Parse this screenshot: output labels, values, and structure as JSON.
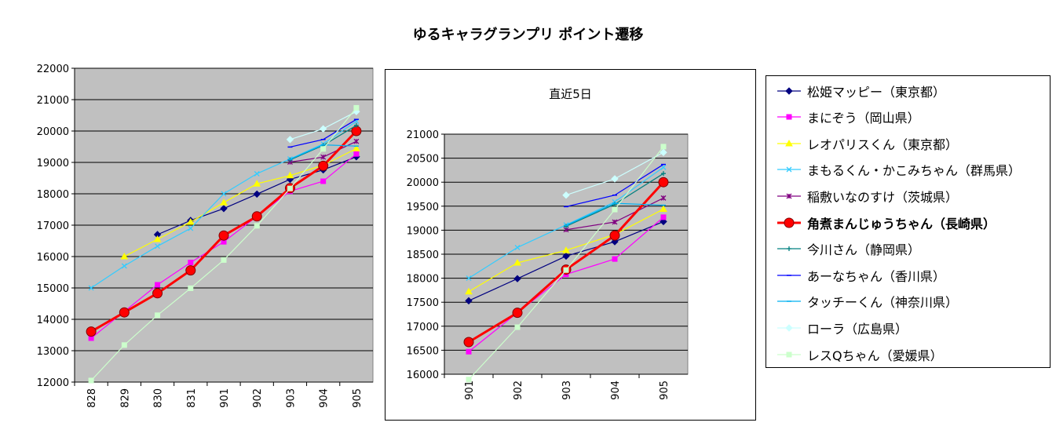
{
  "title": "ゆるキャラグランプリ ポイント遷移",
  "chart_data": [
    {
      "type": "line",
      "categories": [
        "828",
        "829",
        "830",
        "831",
        "901",
        "902",
        "903",
        "904",
        "905"
      ],
      "ylim": [
        12000,
        22000
      ],
      "yticks": [
        12000,
        13000,
        14000,
        15000,
        16000,
        17000,
        18000,
        19000,
        20000,
        21000,
        22000
      ],
      "grid": true,
      "series": [
        {
          "name": "松姫マッピー（東京都）",
          "values": [
            null,
            null,
            16700,
            17150,
            17530,
            17990,
            18460,
            18760,
            19180
          ]
        },
        {
          "name": "まにぞう（岡山県）",
          "values": [
            13400,
            14250,
            15100,
            15810,
            16470,
            17280,
            18080,
            18400,
            19270
          ]
        },
        {
          "name": "レオパリスくん（東京都）",
          "values": [
            null,
            16000,
            16550,
            17100,
            17720,
            18320,
            18580,
            18910,
            19440
          ]
        },
        {
          "name": "まもるくん・かこみちゃん（群馬県）",
          "values": [
            15000,
            15700,
            16330,
            16900,
            18000,
            18640,
            19110,
            19590,
            20310
          ]
        },
        {
          "name": "稲敷いなのすけ（茨城県）",
          "values": [
            null,
            null,
            null,
            null,
            null,
            null,
            19010,
            19170,
            19670
          ]
        },
        {
          "name": "角煮まんじゅうちゃん（長崎県）",
          "values": [
            13610,
            14220,
            14830,
            15560,
            16670,
            17280,
            18180,
            18890,
            20000
          ]
        },
        {
          "name": "今川さん（静岡県）",
          "values": [
            null,
            null,
            null,
            null,
            null,
            null,
            19080,
            19540,
            20180
          ]
        },
        {
          "name": "あーなちゃん（香川県）",
          "values": [
            null,
            null,
            null,
            null,
            null,
            null,
            19490,
            19730,
            20370
          ]
        },
        {
          "name": "タッチーくん（神奈川県）",
          "values": [
            null,
            null,
            null,
            null,
            null,
            null,
            19100,
            19560,
            19520
          ]
        },
        {
          "name": "ローラ（広島県）",
          "values": [
            null,
            null,
            null,
            null,
            null,
            null,
            19730,
            20070,
            20620
          ]
        },
        {
          "name": "レスQちゃん（愛媛県）",
          "values": [
            12050,
            13180,
            14130,
            14990,
            15890,
            16980,
            18170,
            19430,
            20740
          ]
        }
      ]
    },
    {
      "type": "line",
      "title": "直近5日",
      "categories": [
        "901",
        "902",
        "903",
        "904",
        "905"
      ],
      "ylim": [
        16000,
        21000
      ],
      "yticks": [
        16000,
        16500,
        17000,
        17500,
        18000,
        18500,
        19000,
        19500,
        20000,
        20500,
        21000
      ],
      "grid": true,
      "series": [
        {
          "name": "松姫マッピー（東京都）",
          "values": [
            17530,
            17990,
            18460,
            18760,
            19180
          ]
        },
        {
          "name": "まにぞう（岡山県）",
          "values": [
            16470,
            17280,
            18080,
            18400,
            19270
          ]
        },
        {
          "name": "レオパリスくん（東京都）",
          "values": [
            17720,
            18320,
            18580,
            18910,
            19440
          ]
        },
        {
          "name": "まもるくん・かこみちゃん（群馬県）",
          "values": [
            18000,
            18640,
            19110,
            19590,
            20310
          ]
        },
        {
          "name": "稲敷いなのすけ（茨城県）",
          "values": [
            null,
            null,
            19010,
            19170,
            19670
          ]
        },
        {
          "name": "角煮まんじゅうちゃん（長崎県）",
          "values": [
            16670,
            17280,
            18180,
            18890,
            20000
          ]
        },
        {
          "name": "今川さん（静岡県）",
          "values": [
            null,
            null,
            19080,
            19540,
            20180
          ]
        },
        {
          "name": "あーなちゃん（香川県）",
          "values": [
            null,
            null,
            19490,
            19730,
            20370
          ]
        },
        {
          "name": "タッチーくん（神奈川県）",
          "values": [
            null,
            null,
            19100,
            19560,
            19520
          ]
        },
        {
          "name": "ローラ（広島県）",
          "values": [
            null,
            null,
            19730,
            20070,
            20620
          ]
        },
        {
          "name": "レスQちゃん（愛媛県）",
          "values": [
            15890,
            16980,
            18170,
            19430,
            20740
          ]
        }
      ]
    }
  ],
  "legend": {
    "placement": "right",
    "items": [
      {
        "label": "松姫マッピー（東京都）",
        "color": "#000080",
        "marker": "diamond",
        "bold": false
      },
      {
        "label": "まにぞう（岡山県）",
        "color": "#ff00ff",
        "marker": "square",
        "bold": false
      },
      {
        "label": "レオパリスくん（東京都）",
        "color": "#ffff00",
        "marker": "triangle",
        "bold": false
      },
      {
        "label": "まもるくん・かこみちゃん（群馬県）",
        "color": "#33ccff",
        "marker": "x",
        "bold": false
      },
      {
        "label": "稲敷いなのすけ（茨城県）",
        "color": "#800080",
        "marker": "star",
        "bold": false
      },
      {
        "label": "角煮まんじゅうちゃん（長崎県）",
        "color": "#ff0000",
        "marker": "circle",
        "bold": true
      },
      {
        "label": "今川さん（静岡県）",
        "color": "#008080",
        "marker": "plus",
        "bold": false
      },
      {
        "label": "あーなちゃん（香川県）",
        "color": "#0000ff",
        "marker": "dash",
        "bold": false
      },
      {
        "label": "タッチーくん（神奈川県）",
        "color": "#00b0f0",
        "marker": "dash",
        "bold": false
      },
      {
        "label": "ローラ（広島県）",
        "color": "#ccffff",
        "marker": "diamond",
        "bold": false
      },
      {
        "label": "レスQちゃん（愛媛県）",
        "color": "#ccffcc",
        "marker": "square",
        "bold": false
      }
    ]
  }
}
